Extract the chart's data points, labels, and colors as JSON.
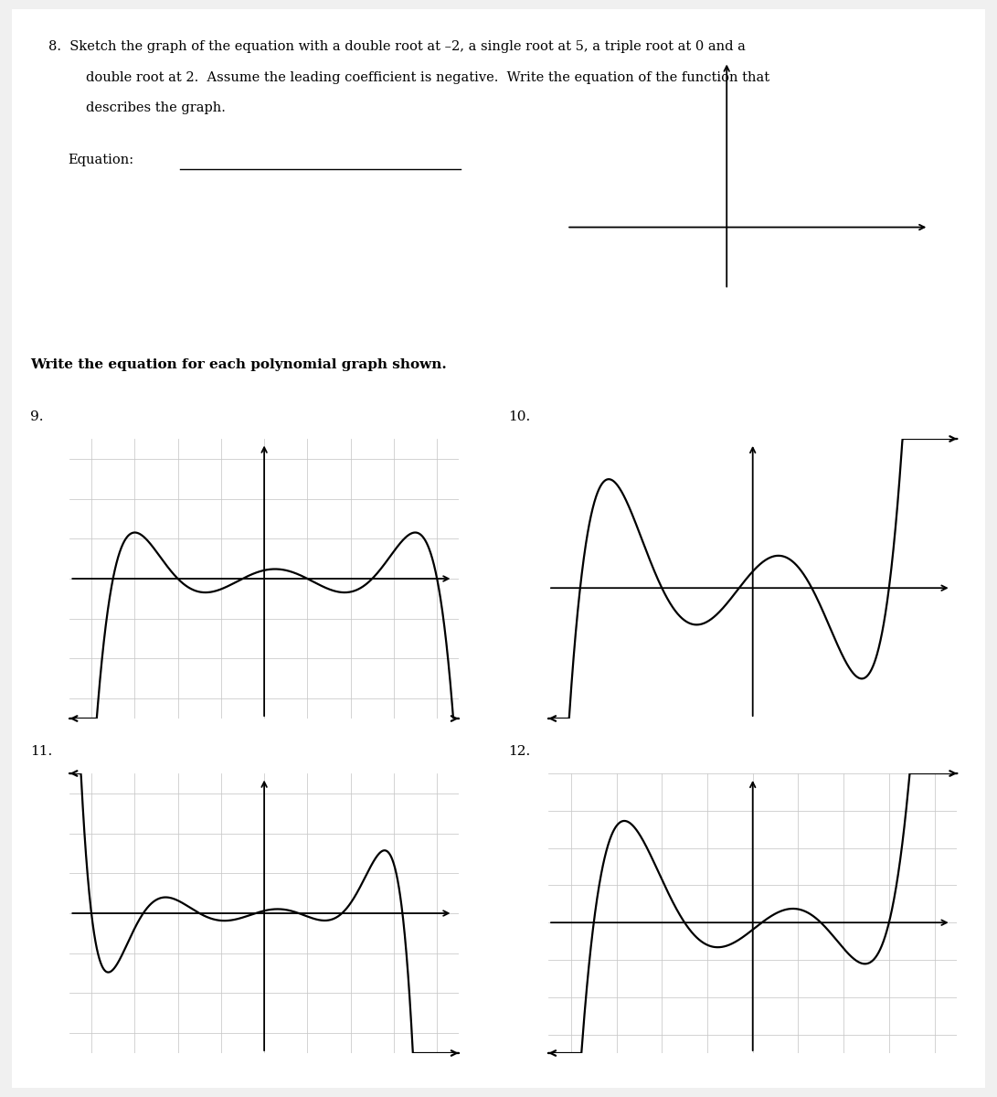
{
  "page_bg": "#f0f0f0",
  "paper_bg": "#ffffff",
  "text_color": "#000000",
  "grid_color": "#c8c8c8",
  "axis_color": "#000000",
  "curve_color": "#000000",
  "line_width": 1.6,
  "axis_lw": 1.3,
  "font_size_body": 10.5,
  "font_size_label": 11,
  "graph9_roots": [
    -3.5,
    -2.0,
    -0.5,
    1.0,
    2.5,
    4.0
  ],
  "graph9_sign": -1,
  "graph9_scale": 0.006,
  "graph9_xlim": [
    -4.5,
    4.5
  ],
  "graph9_ylim": [
    -3.5,
    3.5
  ],
  "graph10_roots": [
    -3.8,
    -2.0,
    -0.3,
    1.3,
    3.0
  ],
  "graph10_sign": 1,
  "graph10_scale": 0.05,
  "graph10_xlim": [
    -4.5,
    4.5
  ],
  "graph10_ylim": [
    -3.5,
    4.0
  ],
  "graph11_roots": [
    -4.0,
    -2.8,
    -1.5,
    -0.2,
    0.8,
    1.8,
    3.2
  ],
  "graph11_sign": -1,
  "graph11_scale": 0.004,
  "graph11_xlim": [
    -4.5,
    4.5
  ],
  "graph11_ylim": [
    -3.5,
    3.5
  ],
  "graph12_roots": [
    -3.5,
    -1.5,
    0.2,
    1.5,
    3.0
  ],
  "graph12_sign": 1,
  "graph12_scale": 0.04,
  "graph12_xlim": [
    -4.5,
    4.5
  ],
  "graph12_ylim": [
    -3.5,
    4.0
  ]
}
